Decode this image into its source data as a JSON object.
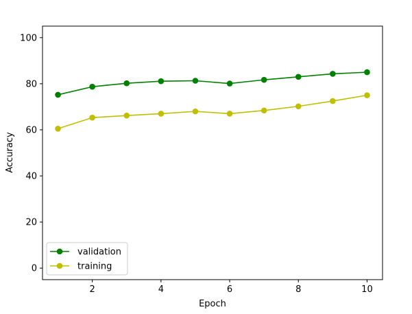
{
  "chart_data": {
    "type": "line",
    "xlabel": "Epoch",
    "ylabel": "Accuracy",
    "x": [
      1,
      2,
      3,
      4,
      5,
      6,
      7,
      8,
      9,
      10
    ],
    "xlim": [
      0.55,
      10.45
    ],
    "ylim": [
      -5,
      105
    ],
    "xticks": [
      2,
      4,
      6,
      8,
      10
    ],
    "yticks": [
      0,
      20,
      40,
      60,
      80,
      100
    ],
    "grid": false,
    "legend": "lower-left",
    "series": [
      {
        "name": "validation",
        "color": "#008000",
        "marker": "circle",
        "values": [
          75.2,
          78.7,
          80.2,
          81.1,
          81.3,
          80.1,
          81.7,
          83.0,
          84.3,
          85.0
        ]
      },
      {
        "name": "training",
        "color": "#bfbf00",
        "marker": "circle",
        "values": [
          60.5,
          65.3,
          66.2,
          67.0,
          68.0,
          67.0,
          68.4,
          70.2,
          72.5,
          75.0
        ]
      }
    ]
  }
}
